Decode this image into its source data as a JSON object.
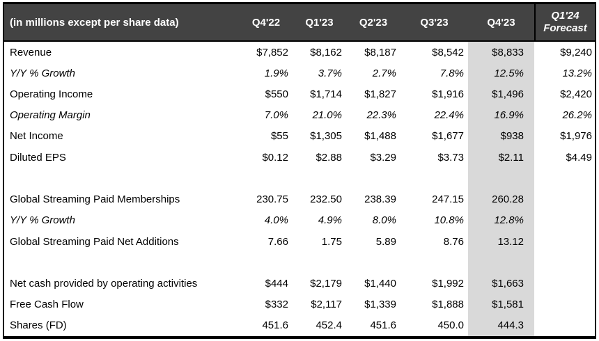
{
  "table": {
    "unit_note": "(in millions except per share data)",
    "columns": [
      "Q4'22",
      "Q1'23",
      "Q2'23",
      "Q3'23",
      "Q4'23"
    ],
    "forecast_column": {
      "line1": "Q1'24",
      "line2": "Forecast"
    },
    "highlight_column": "Q4'23",
    "colors": {
      "header_bg": "#434343",
      "header_text": "#ffffff",
      "highlight_bg": "#d9d9d9",
      "border": "#000000",
      "body_bg": "#ffffff"
    },
    "rows": [
      {
        "type": "data",
        "italic": false,
        "label": "Revenue",
        "values": [
          "$7,852",
          "$8,162",
          "$8,187",
          "$8,542",
          "$8,833",
          "$9,240"
        ]
      },
      {
        "type": "data",
        "italic": true,
        "label": "Y/Y % Growth",
        "values": [
          "1.9%",
          "3.7%",
          "2.7%",
          "7.8%",
          "12.5%",
          "13.2%"
        ]
      },
      {
        "type": "data",
        "italic": false,
        "label": "Operating Income",
        "values": [
          "$550",
          "$1,714",
          "$1,827",
          "$1,916",
          "$1,496",
          "$2,420"
        ]
      },
      {
        "type": "data",
        "italic": true,
        "label": "Operating Margin",
        "values": [
          "7.0%",
          "21.0%",
          "22.3%",
          "22.4%",
          "16.9%",
          "26.2%"
        ]
      },
      {
        "type": "data",
        "italic": false,
        "label": "Net Income",
        "values": [
          "$55",
          "$1,305",
          "$1,488",
          "$1,677",
          "$938",
          "$1,976"
        ]
      },
      {
        "type": "data",
        "italic": false,
        "label": "Diluted EPS",
        "values": [
          "$0.12",
          "$2.88",
          "$3.29",
          "$3.73",
          "$2.11",
          "$4.49"
        ]
      },
      {
        "type": "blank"
      },
      {
        "type": "data",
        "italic": false,
        "label": "Global Streaming Paid Memberships",
        "values": [
          "230.75",
          "232.50",
          "238.39",
          "247.15",
          "260.28",
          ""
        ]
      },
      {
        "type": "data",
        "italic": true,
        "label": "Y/Y % Growth",
        "values": [
          "4.0%",
          "4.9%",
          "8.0%",
          "10.8%",
          "12.8%",
          ""
        ]
      },
      {
        "type": "data",
        "italic": false,
        "label": "Global Streaming Paid Net Additions",
        "values": [
          "7.66",
          "1.75",
          "5.89",
          "8.76",
          "13.12",
          ""
        ]
      },
      {
        "type": "blank"
      },
      {
        "type": "data",
        "italic": false,
        "label": "Net cash provided by operating activities",
        "values": [
          "$444",
          "$2,179",
          "$1,440",
          "$1,992",
          "$1,663",
          ""
        ]
      },
      {
        "type": "data",
        "italic": false,
        "label": "Free Cash Flow",
        "values": [
          "$332",
          "$2,117",
          "$1,339",
          "$1,888",
          "$1,581",
          ""
        ]
      },
      {
        "type": "data",
        "italic": false,
        "label": "Shares (FD)",
        "values": [
          "451.6",
          "452.4",
          "451.6",
          "450.0",
          "444.3",
          ""
        ]
      }
    ]
  }
}
